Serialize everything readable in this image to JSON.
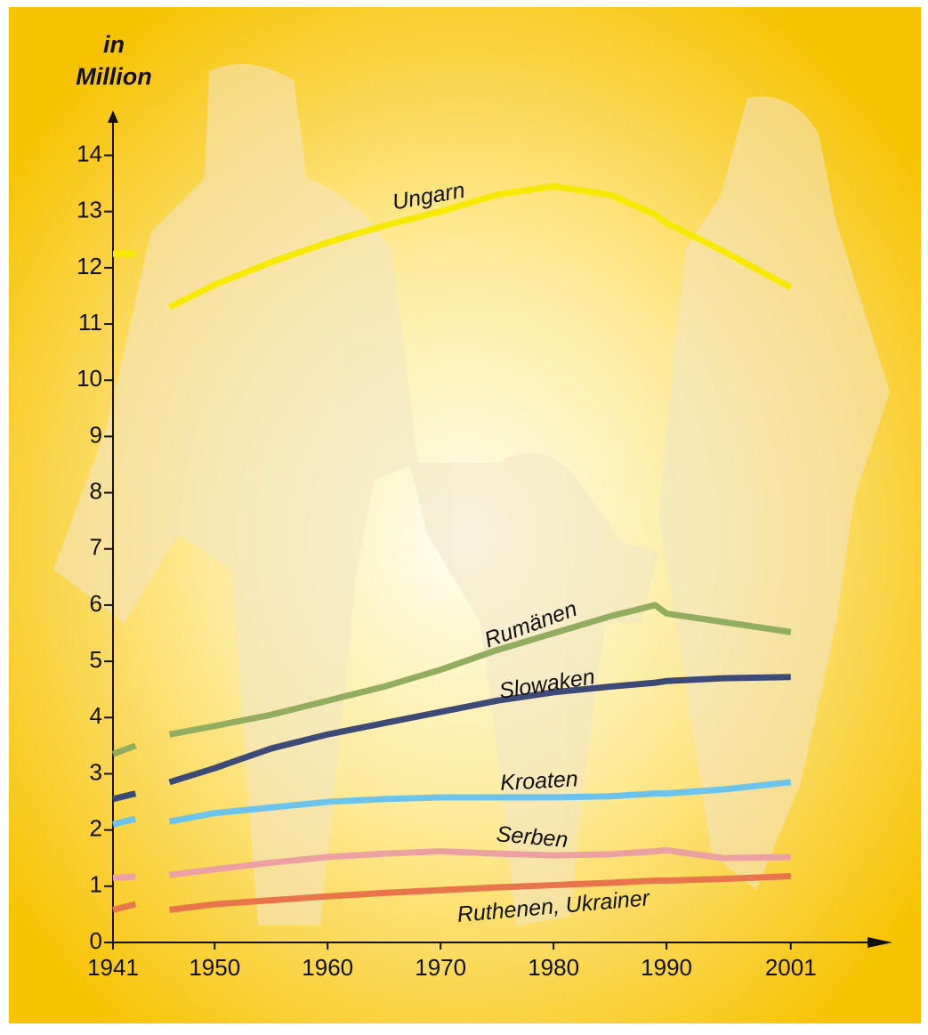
{
  "chart_data": {
    "type": "line",
    "ylabel": [
      "in",
      "Million"
    ],
    "x": [
      1941,
      1943,
      1944,
      1946,
      1950,
      1955,
      1960,
      1965,
      1970,
      1975,
      1980,
      1985,
      1989,
      1990,
      1995,
      2001
    ],
    "xlim": [
      1941,
      2010
    ],
    "xticks": [
      1941,
      1950,
      1960,
      1970,
      1980,
      1990,
      2001
    ],
    "ylim": [
      0,
      14.8
    ],
    "yticks": [
      0,
      1,
      2,
      3,
      4,
      5,
      6,
      7,
      8,
      9,
      10,
      11,
      12,
      13,
      14
    ],
    "series": [
      {
        "name": "Ungarn",
        "color": "#f5ea00",
        "values": [
          12.25,
          12.25,
          null,
          11.3,
          11.7,
          12.1,
          12.45,
          12.75,
          13.0,
          13.3,
          13.45,
          13.3,
          12.95,
          12.8,
          12.3,
          11.65
        ]
      },
      {
        "name": "Rumänen",
        "color": "#93ad60",
        "values": [
          3.35,
          3.5,
          null,
          3.7,
          3.85,
          4.05,
          4.3,
          4.55,
          4.85,
          5.2,
          5.5,
          5.8,
          6.0,
          5.85,
          5.7,
          5.52
        ]
      },
      {
        "name": "Slowaken",
        "color": "#3d4a77",
        "values": [
          2.55,
          2.65,
          null,
          2.85,
          3.1,
          3.45,
          3.7,
          3.9,
          4.1,
          4.3,
          4.45,
          4.55,
          4.62,
          4.65,
          4.7,
          4.72
        ]
      },
      {
        "name": "Kroaten",
        "color": "#6cc4ec",
        "values": [
          2.1,
          2.2,
          null,
          2.15,
          2.3,
          2.4,
          2.5,
          2.55,
          2.58,
          2.58,
          2.58,
          2.6,
          2.65,
          2.65,
          2.72,
          2.85
        ]
      },
      {
        "name": "Serben",
        "color": "#eda0a2",
        "values": [
          1.15,
          1.17,
          null,
          1.2,
          1.3,
          1.42,
          1.52,
          1.58,
          1.62,
          1.58,
          1.55,
          1.57,
          1.62,
          1.64,
          1.5,
          1.52
        ]
      },
      {
        "name": "Ruthenen, Ukrainer",
        "color": "#e8764a",
        "values": [
          0.58,
          0.68,
          null,
          0.58,
          0.68,
          0.75,
          0.82,
          0.88,
          0.93,
          0.98,
          1.02,
          1.06,
          1.1,
          1.1,
          1.13,
          1.18
        ]
      }
    ]
  }
}
